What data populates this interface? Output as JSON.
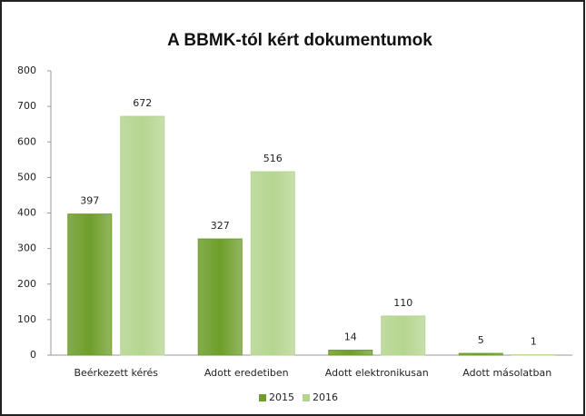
{
  "chart_data": {
    "type": "bar",
    "title": "A BBMK-tól kért dokumentumok",
    "categories": [
      "Beérkezett kérés",
      "Adott eredetiben",
      "Adott elektronikusan",
      "Adott másolatban"
    ],
    "series": [
      {
        "name": "2015",
        "color": "#6e9e2a",
        "values": [
          397,
          327,
          14,
          5
        ]
      },
      {
        "name": "2016",
        "color": "#b5d590",
        "values": [
          672,
          516,
          110,
          1
        ]
      }
    ],
    "ylim": [
      0,
      800
    ],
    "yticks": [
      0,
      100,
      200,
      300,
      400,
      500,
      600,
      700,
      800
    ],
    "grid": false,
    "legend": "bottom"
  }
}
